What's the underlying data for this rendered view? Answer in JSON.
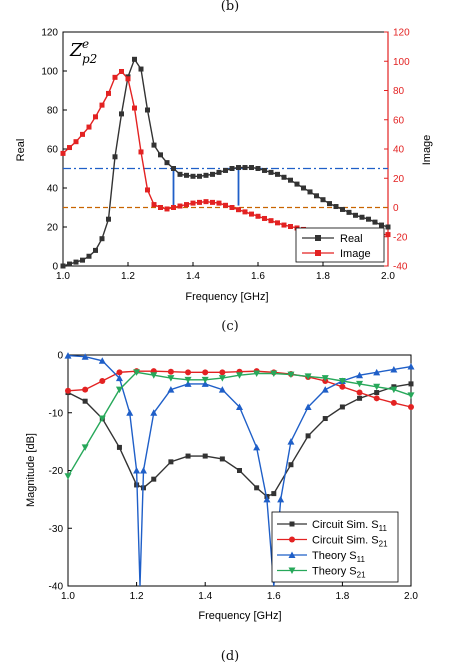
{
  "captions": {
    "top": "(b)",
    "c": "(c)",
    "d": "(d)"
  },
  "chart_data": [
    {
      "type": "line",
      "annotation": "Z_{p2}^{e}",
      "xlabel": "Frequency [GHz]",
      "ylabel_left": "Real",
      "ylabel_right": "Image",
      "xlim": [
        1.0,
        2.0
      ],
      "ylim_left": [
        0,
        120
      ],
      "ylim_right": [
        -40,
        120
      ],
      "xticks": [
        "1.0",
        "1.2",
        "1.4",
        "1.6",
        "1.8",
        "2.0"
      ],
      "yticks_left": [
        "0",
        "20",
        "40",
        "60",
        "80",
        "100",
        "120"
      ],
      "yticks_right": [
        "-40",
        "-20",
        "0",
        "20",
        "40",
        "60",
        "80",
        "100",
        "120"
      ],
      "legend_position": "bottom-right",
      "colors": {
        "real": "#333333",
        "image": "#e32222",
        "ref_blue": "#1f5fc8",
        "ref_orange": "#c86400"
      },
      "series": [
        {
          "name": "Real",
          "axis": "left",
          "x": [
            1.0,
            1.02,
            1.04,
            1.06,
            1.08,
            1.1,
            1.12,
            1.14,
            1.16,
            1.18,
            1.2,
            1.22,
            1.24,
            1.26,
            1.28,
            1.3,
            1.32,
            1.34,
            1.36,
            1.38,
            1.4,
            1.42,
            1.44,
            1.46,
            1.48,
            1.5,
            1.52,
            1.54,
            1.56,
            1.58,
            1.6,
            1.62,
            1.64,
            1.66,
            1.68,
            1.7,
            1.72,
            1.74,
            1.76,
            1.78,
            1.8,
            1.82,
            1.84,
            1.86,
            1.88,
            1.9,
            1.92,
            1.94,
            1.96,
            1.98,
            2.0
          ],
          "values": [
            0,
            1,
            2,
            3,
            5,
            8,
            14,
            24,
            56,
            78,
            97,
            106,
            101,
            80,
            62,
            57,
            53,
            50,
            47,
            46.5,
            46,
            46,
            46.5,
            47,
            48,
            49,
            50,
            50.5,
            50.5,
            50.5,
            50,
            49,
            48,
            47,
            45.5,
            44,
            42,
            40,
            38,
            36,
            34,
            32,
            30.5,
            29,
            27.5,
            26,
            25,
            24,
            22.5,
            21,
            20
          ]
        },
        {
          "name": "Image",
          "axis": "right",
          "x": [
            1.0,
            1.02,
            1.04,
            1.06,
            1.08,
            1.1,
            1.12,
            1.14,
            1.16,
            1.18,
            1.2,
            1.22,
            1.24,
            1.26,
            1.28,
            1.3,
            1.32,
            1.34,
            1.36,
            1.38,
            1.4,
            1.42,
            1.44,
            1.46,
            1.48,
            1.5,
            1.52,
            1.54,
            1.56,
            1.58,
            1.6,
            1.62,
            1.64,
            1.66,
            1.68,
            1.7,
            1.72,
            1.74,
            1.76,
            1.78,
            1.8,
            1.82,
            1.84,
            1.86,
            1.88,
            1.9,
            1.92,
            1.94,
            1.96,
            1.98,
            2.0
          ],
          "values": [
            37,
            41,
            45,
            50,
            55,
            62,
            70,
            78,
            89,
            93,
            88,
            68,
            38,
            12,
            2,
            0,
            -1,
            0,
            1,
            2,
            3,
            3.5,
            4,
            3.5,
            3,
            1.5,
            0,
            -1.5,
            -3,
            -4.5,
            -6,
            -7.5,
            -9,
            -10.5,
            -12,
            -13,
            -14,
            -15,
            -16,
            -17,
            -18,
            -18.5,
            -19,
            -19,
            -19,
            -19,
            -18.5,
            -18.5,
            -18.5,
            -18.5,
            -18.5
          ]
        }
      ],
      "reference_lines": [
        {
          "axis": "left",
          "y": 50,
          "style": "dash-dot",
          "color": "#1f5fc8"
        },
        {
          "axis": "right",
          "y": 0,
          "style": "dashed",
          "color": "#c86400"
        }
      ],
      "vertical_segments": [
        {
          "x": 1.34,
          "y_from": 31,
          "y_to": 50
        },
        {
          "x": 1.54,
          "y_from": 31,
          "y_to": 50
        }
      ]
    },
    {
      "type": "line",
      "xlabel": "Frequency [GHz]",
      "ylabel": "Magnitude [dB]",
      "xlim": [
        1.0,
        2.0
      ],
      "ylim": [
        -40,
        0
      ],
      "xticks": [
        "1.0",
        "1.2",
        "1.4",
        "1.6",
        "1.8",
        "2.0"
      ],
      "yticks": [
        "0",
        "-10",
        "-20",
        "-30",
        "-40"
      ],
      "legend_position": "bottom-right",
      "series": [
        {
          "name": "Circuit Sim. S11",
          "label_main": "Circuit Sim. S",
          "label_sub": "11",
          "color": "#333333",
          "marker": "square",
          "x": [
            1.0,
            1.05,
            1.1,
            1.15,
            1.2,
            1.22,
            1.25,
            1.3,
            1.35,
            1.4,
            1.45,
            1.5,
            1.55,
            1.58,
            1.6,
            1.65,
            1.7,
            1.75,
            1.8,
            1.85,
            1.9,
            1.95,
            2.0
          ],
          "values": [
            -6.5,
            -8,
            -11,
            -16,
            -22.5,
            -23,
            -21.5,
            -18.5,
            -17.5,
            -17.5,
            -18,
            -20,
            -23,
            -24.5,
            -24,
            -19,
            -14,
            -11,
            -9,
            -7.5,
            -6.5,
            -5.5,
            -5
          ]
        },
        {
          "name": "Circuit Sim. S21",
          "label_main": "Circuit Sim. S",
          "label_sub": "21",
          "color": "#e32222",
          "marker": "circle",
          "x": [
            1.0,
            1.05,
            1.1,
            1.15,
            1.2,
            1.25,
            1.3,
            1.35,
            1.4,
            1.45,
            1.5,
            1.55,
            1.6,
            1.65,
            1.7,
            1.75,
            1.8,
            1.85,
            1.9,
            1.95,
            2.0
          ],
          "values": [
            -6.2,
            -6,
            -4.5,
            -3,
            -2.8,
            -2.8,
            -2.9,
            -3,
            -3,
            -3,
            -2.9,
            -2.8,
            -3,
            -3.3,
            -3.8,
            -4.5,
            -5.5,
            -6.5,
            -7.5,
            -8.3,
            -9
          ]
        },
        {
          "name": "Theory S11",
          "label_main": "Theory S",
          "label_sub": "11",
          "color": "#1f5fc8",
          "marker": "triangle-up",
          "x": [
            1.0,
            1.05,
            1.1,
            1.15,
            1.18,
            1.2,
            1.21,
            1.22,
            1.25,
            1.3,
            1.35,
            1.4,
            1.45,
            1.5,
            1.55,
            1.58,
            1.6,
            1.62,
            1.65,
            1.7,
            1.75,
            1.8,
            1.85,
            1.9,
            1.95,
            2.0
          ],
          "values": [
            -0.1,
            -0.3,
            -1,
            -4,
            -10,
            -20,
            -40,
            -20,
            -10,
            -6,
            -5,
            -5,
            -6,
            -9,
            -16,
            -25,
            -40,
            -25,
            -15,
            -9,
            -6,
            -4.5,
            -3.5,
            -3,
            -2.5,
            -2
          ]
        },
        {
          "name": "Theory S21",
          "label_main": "Theory S",
          "label_sub": "21",
          "color": "#27a85a",
          "marker": "triangle-down",
          "x": [
            1.0,
            1.05,
            1.1,
            1.15,
            1.2,
            1.25,
            1.3,
            1.35,
            1.4,
            1.45,
            1.5,
            1.55,
            1.6,
            1.65,
            1.7,
            1.75,
            1.8,
            1.85,
            1.9,
            1.95,
            2.0
          ],
          "values": [
            -21,
            -16,
            -11,
            -6,
            -3,
            -3.5,
            -4,
            -4.3,
            -4.3,
            -4,
            -3.5,
            -3.2,
            -3.2,
            -3.4,
            -3.7,
            -4,
            -4.5,
            -5,
            -5.5,
            -6,
            -7
          ]
        }
      ]
    }
  ]
}
